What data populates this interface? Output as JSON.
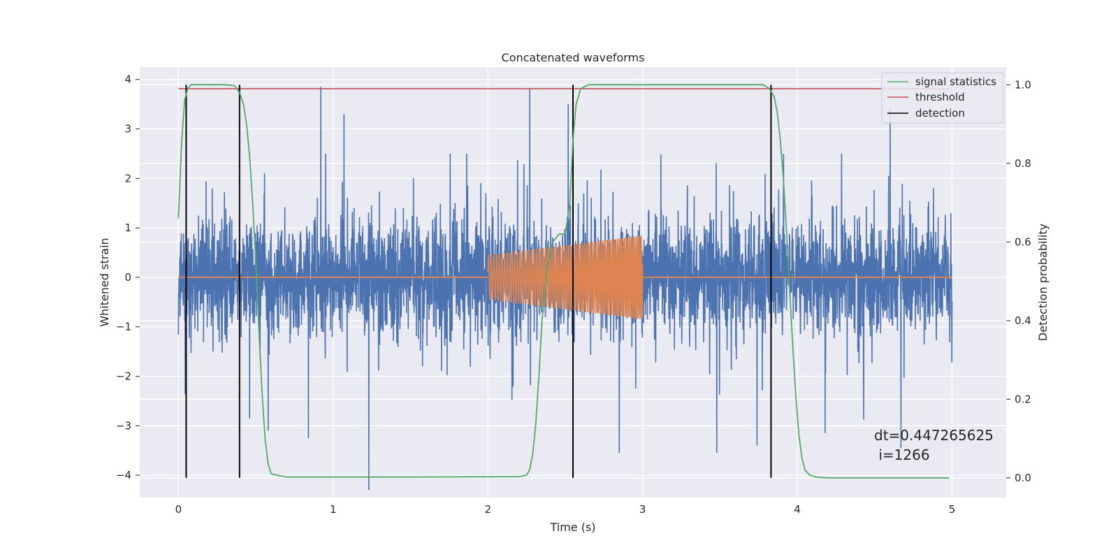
{
  "chart_data": {
    "type": "line",
    "title": "Concatenated waveforms",
    "xlabel": "Time (s)",
    "ylabel": "Whitened strain",
    "y2label": "Detection probability",
    "xlim": [
      -0.25,
      5.35
    ],
    "ylim": [
      -4.45,
      4.25
    ],
    "y2lim": [
      -0.05,
      1.045
    ],
    "xticks": [
      "0",
      "1",
      "2",
      "3",
      "4",
      "5"
    ],
    "xtick_values": [
      0,
      1,
      2,
      3,
      4,
      5
    ],
    "yticks": [
      "−4",
      "−3",
      "−2",
      "−1",
      "0",
      "1",
      "2",
      "3",
      "4"
    ],
    "ytick_values": [
      -4,
      -3,
      -2,
      -1,
      0,
      1,
      2,
      3,
      4
    ],
    "y2ticks": [
      "0.0",
      "0.2",
      "0.4",
      "0.6",
      "0.8",
      "1.0"
    ],
    "y2tick_values": [
      0,
      0.2,
      0.4,
      0.6,
      0.8,
      1.0
    ],
    "grid": true,
    "legend_position": "top-right",
    "legend": [
      "signal statistics",
      "threshold",
      "detection"
    ],
    "annotation": {
      "line1": "dt=0.447265625",
      "line2": " i=1266"
    },
    "series": [
      {
        "name": "noise",
        "axis": "left",
        "color": "#4c72b0",
        "x_range": [
          0,
          5
        ],
        "samples": 4000,
        "amplitude_envelope": 2.5,
        "spikes": [
          {
            "x": 0.92,
            "y": 3.85
          },
          {
            "x": 1.23,
            "y": -4.3
          },
          {
            "x": 2.27,
            "y": 3.8
          },
          {
            "x": 4.6,
            "y": 3.45
          },
          {
            "x": 1.07,
            "y": 3.3
          },
          {
            "x": 2.52,
            "y": 3.5
          },
          {
            "x": 0.84,
            "y": -3.25
          },
          {
            "x": 2.85,
            "y": -3.55
          },
          {
            "x": 3.48,
            "y": -3.55
          },
          {
            "x": 3.74,
            "y": -3.4
          },
          {
            "x": 4.18,
            "y": -3.15
          },
          {
            "x": 4.67,
            "y": -3.45
          },
          {
            "x": 0.58,
            "y": -3.1
          },
          {
            "x": 0.46,
            "y": -2.85
          }
        ]
      },
      {
        "name": "injected",
        "axis": "left",
        "color": "#dd8452",
        "x_range": [
          0,
          5
        ],
        "chirp_start": 2.0,
        "chirp_end": 3.0,
        "amp_start": 0.45,
        "amp_end": 0.85
      },
      {
        "name": "signal statistics",
        "axis": "right",
        "color": "#55a868",
        "x": [
          0,
          0.02,
          0.04,
          0.06,
          0.08,
          0.1,
          0.15,
          0.3,
          0.36,
          0.38,
          0.4,
          0.42,
          0.44,
          0.46,
          0.48,
          0.5,
          0.52,
          0.54,
          0.56,
          0.58,
          0.6,
          0.7,
          1.5,
          2.2,
          2.25,
          2.27,
          2.29,
          2.31,
          2.33,
          2.35,
          2.38,
          2.42,
          2.46,
          2.5,
          2.53,
          2.55,
          2.57,
          2.6,
          2.65,
          3.0,
          3.6,
          3.78,
          3.82,
          3.85,
          3.87,
          3.89,
          3.91,
          3.93,
          3.95,
          3.97,
          3.99,
          4.01,
          4.03,
          4.05,
          4.08,
          4.12,
          4.2,
          4.6,
          4.98
        ],
        "values": [
          0.66,
          0.85,
          0.96,
          0.99,
          1.0,
          1.0,
          1.0,
          1.0,
          0.998,
          0.99,
          0.975,
          0.95,
          0.9,
          0.82,
          0.7,
          0.55,
          0.38,
          0.22,
          0.1,
          0.035,
          0.01,
          0.002,
          0.002,
          0.003,
          0.007,
          0.02,
          0.06,
          0.14,
          0.26,
          0.4,
          0.53,
          0.6,
          0.62,
          0.62,
          0.7,
          0.86,
          0.95,
          0.99,
          1.0,
          1.0,
          1.0,
          1.0,
          0.99,
          0.97,
          0.93,
          0.86,
          0.76,
          0.63,
          0.48,
          0.34,
          0.21,
          0.11,
          0.05,
          0.02,
          0.007,
          0.002,
          0.0,
          0.0,
          0.0
        ]
      },
      {
        "name": "threshold",
        "axis": "right",
        "color": "#c44e52",
        "x": [
          0,
          4.98
        ],
        "values": [
          0.99,
          0.99
        ]
      },
      {
        "name": "detection",
        "axis": "right",
        "color": "#000000",
        "x": [
          0.05,
          0.395,
          2.55,
          3.83
        ],
        "y_range": [
          0.0,
          1.0
        ]
      }
    ]
  }
}
